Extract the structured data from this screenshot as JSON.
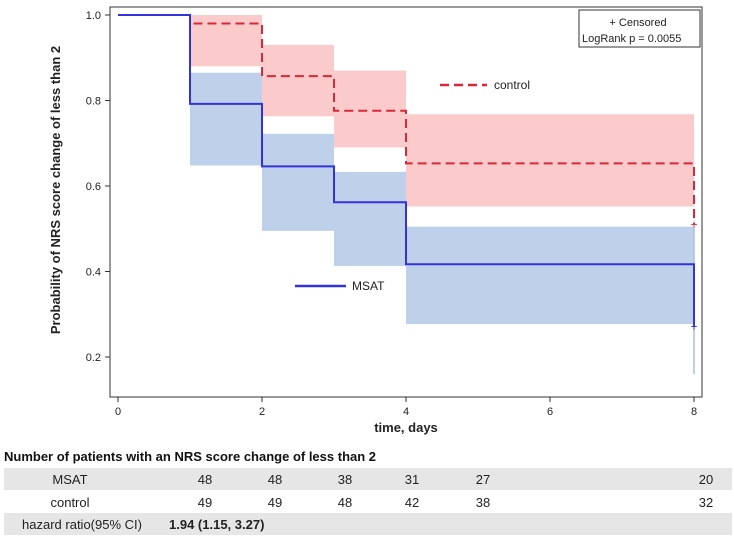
{
  "chart_data": {
    "type": "line",
    "subtype": "kaplan-meier step",
    "xlabel": "time, days",
    "ylabel": "Probability of NRS score change of less than 2",
    "xlim": [
      0,
      8
    ],
    "ylim": [
      0.13,
      1.03
    ],
    "xticks": [
      0,
      2,
      4,
      6,
      8
    ],
    "yticks": [
      0.2,
      0.4,
      0.6,
      0.8,
      1.0
    ],
    "ytick_labels": [
      "0.2",
      "0.4",
      "0.6",
      "0.8",
      "1.0"
    ],
    "grid": false,
    "legend_box": {
      "censored": "+ Censored",
      "logrank": "LogRank p = 0.0055"
    },
    "series": [
      {
        "name": "MSAT",
        "color": "#3333dd",
        "band_color": "#a9c0e4",
        "style": "solid",
        "steps": [
          [
            0,
            1.0
          ],
          [
            1,
            0.792
          ],
          [
            2,
            0.646
          ],
          [
            3,
            0.562
          ],
          [
            4,
            0.417
          ],
          [
            8,
            0.271
          ]
        ],
        "ci": [
          [
            0,
            1,
            1.0,
            1.0
          ],
          [
            1,
            2,
            0.648,
            0.865
          ],
          [
            2,
            3,
            0.495,
            0.722
          ],
          [
            3,
            4,
            0.413,
            0.633
          ],
          [
            4,
            8,
            0.277,
            0.505
          ]
        ],
        "censored": [
          [
            8,
            0.271
          ]
        ]
      },
      {
        "name": "control",
        "color": "#d8283a",
        "band_color": "#f9a8a8",
        "style": "dashed",
        "steps": [
          [
            0,
            1.0
          ],
          [
            1,
            0.98
          ],
          [
            2,
            0.857
          ],
          [
            3,
            0.776
          ],
          [
            4,
            0.653
          ],
          [
            8,
            0.51
          ]
        ],
        "ci": [
          [
            0,
            1,
            1.0,
            1.0
          ],
          [
            1,
            2,
            0.88,
            1.0
          ],
          [
            2,
            3,
            0.763,
            0.93
          ],
          [
            3,
            4,
            0.69,
            0.87
          ],
          [
            4,
            8,
            0.552,
            0.768
          ]
        ],
        "censored": [
          [
            8,
            0.51
          ]
        ]
      }
    ]
  },
  "table": {
    "title": "Number of patients with an NRS score change of less than 2",
    "rows": [
      {
        "label": "MSAT",
        "values": [
          "48",
          "48",
          "38",
          "31",
          "27",
          "20"
        ]
      },
      {
        "label": "control",
        "values": [
          "49",
          "49",
          "48",
          "42",
          "38",
          "32"
        ]
      }
    ],
    "hr_label": "hazard ratio(95% CI)",
    "hr_value": "1.94 (1.15, 3.27)"
  }
}
